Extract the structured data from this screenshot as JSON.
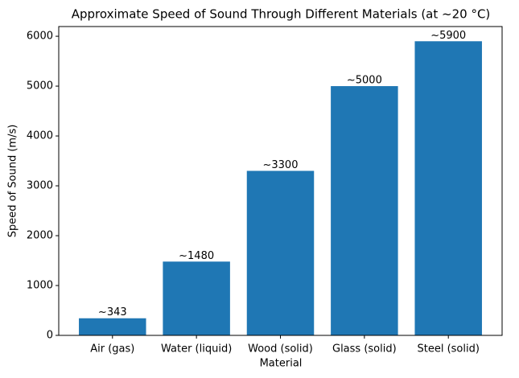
{
  "chart_data": {
    "type": "bar",
    "title": "Approximate Speed of Sound Through Different Materials (at ~20 °C)",
    "x_label": "Material",
    "y_label": "Speed of Sound (m/s)",
    "categories": [
      "Air (gas)",
      "Water (liquid)",
      "Wood (solid)",
      "Glass (solid)",
      "Steel (solid)"
    ],
    "values": [
      343,
      1480,
      3300,
      5000,
      5900
    ],
    "value_labels": [
      "~343",
      "~1480",
      "~3300",
      "~5000",
      "~5900"
    ],
    "color": "#1f77b4",
    "ylim": [
      0,
      6195
    ],
    "yticks": [
      0,
      1000,
      2000,
      3000,
      4000,
      5000,
      6000
    ],
    "grid": false
  }
}
